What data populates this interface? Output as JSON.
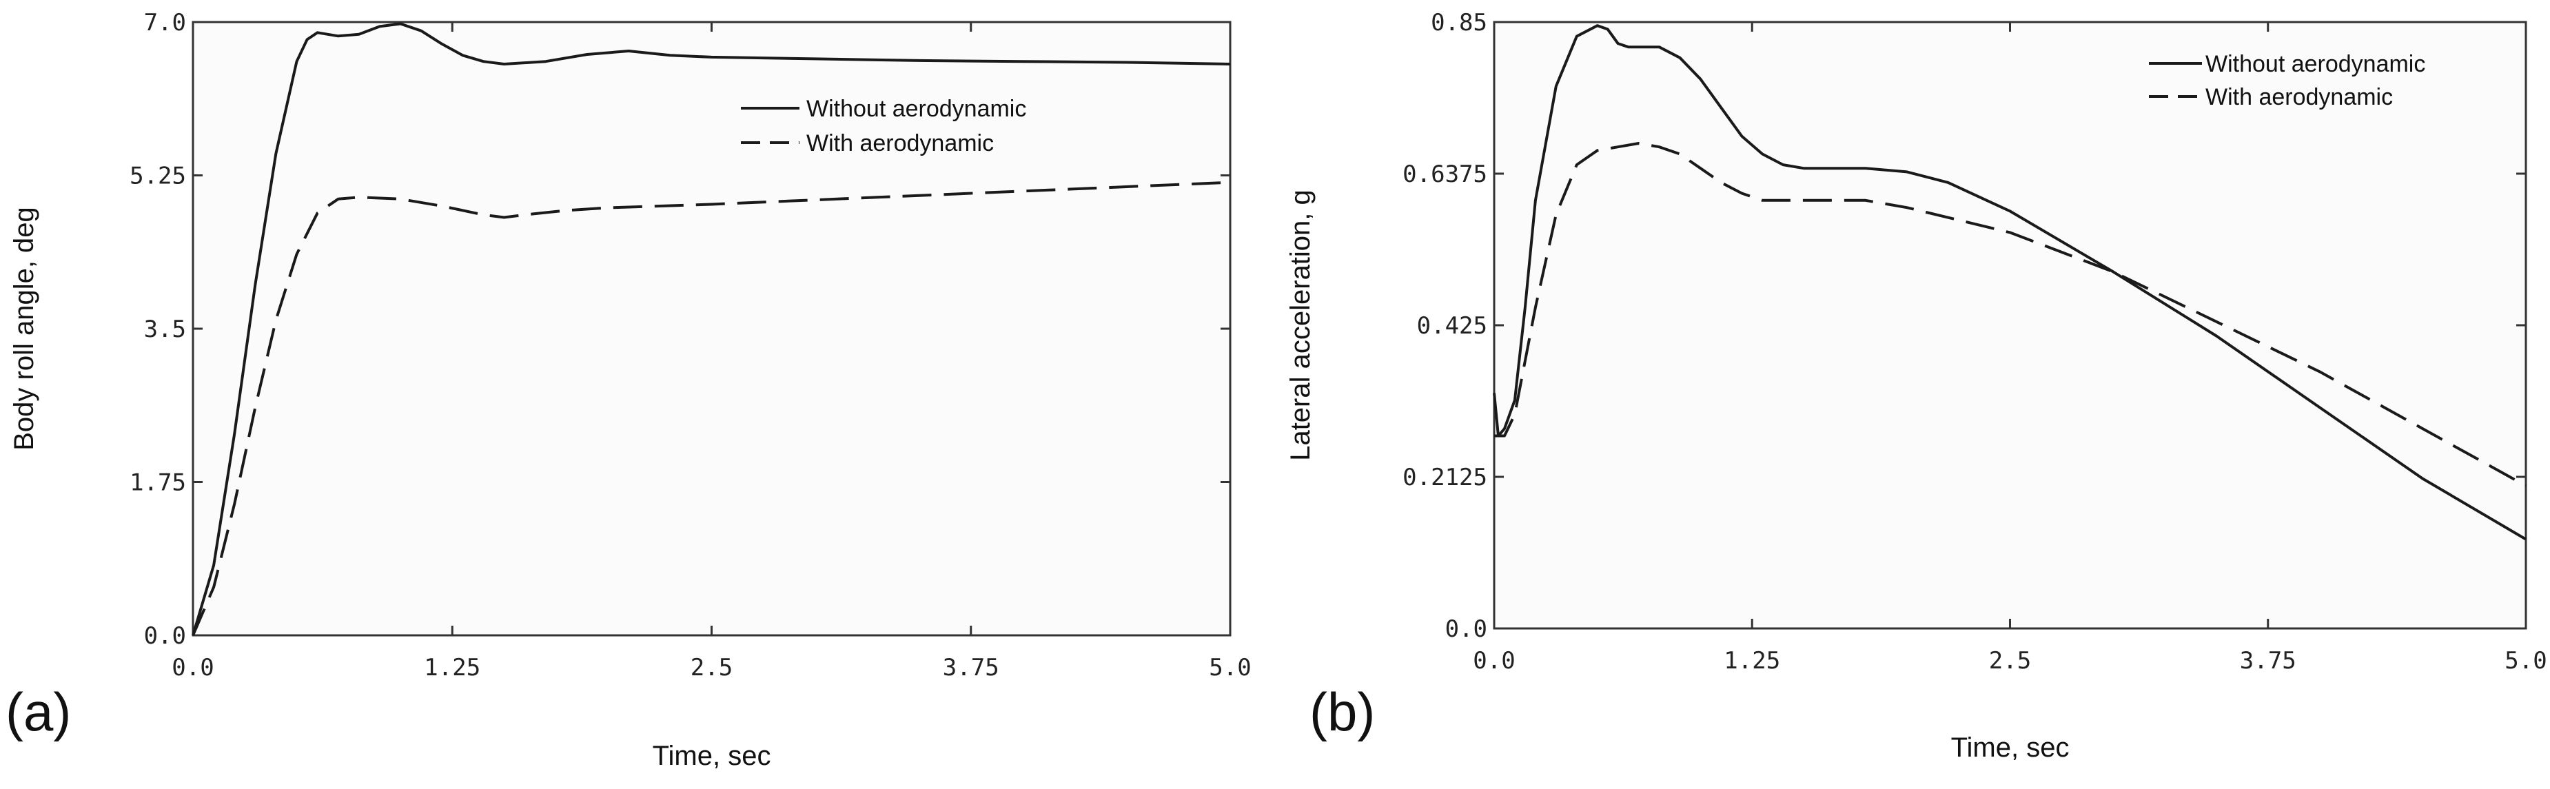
{
  "chart_data": [
    {
      "type": "line",
      "panel_label": "(a)",
      "xlabel": "Time, sec",
      "ylabel": "Body roll angle, deg",
      "xlim": [
        0.0,
        5.0
      ],
      "ylim": [
        0.0,
        7.0
      ],
      "xticks": [
        "0.0",
        "1.25",
        "2.5",
        "3.75",
        "5.0"
      ],
      "yticks": [
        "0.0",
        "1.75",
        "3.5",
        "5.25",
        "7.0"
      ],
      "grid": false,
      "legend": "top-right",
      "series": [
        {
          "name": "Without aerodynamic",
          "style": "solid",
          "x": [
            0,
            0.1,
            0.2,
            0.3,
            0.4,
            0.5,
            0.55,
            0.6,
            0.65,
            0.7,
            0.8,
            0.9,
            1.0,
            1.1,
            1.2,
            1.3,
            1.4,
            1.5,
            1.7,
            1.9,
            2.1,
            2.3,
            2.5,
            3.0,
            3.5,
            4.0,
            4.5,
            5.0
          ],
          "y": [
            0,
            0.8,
            2.3,
            4.0,
            5.5,
            6.55,
            6.8,
            6.88,
            6.86,
            6.84,
            6.86,
            6.95,
            6.98,
            6.9,
            6.75,
            6.62,
            6.55,
            6.52,
            6.55,
            6.63,
            6.67,
            6.62,
            6.6,
            6.58,
            6.56,
            6.55,
            6.54,
            6.52
          ]
        },
        {
          "name": "With aerodynamic",
          "style": "dashed",
          "x": [
            0,
            0.1,
            0.2,
            0.3,
            0.4,
            0.5,
            0.6,
            0.7,
            0.8,
            1.0,
            1.2,
            1.4,
            1.5,
            1.6,
            1.8,
            2.0,
            2.5,
            3.0,
            3.5,
            4.0,
            4.5,
            5.0
          ],
          "y": [
            0,
            0.55,
            1.5,
            2.6,
            3.6,
            4.35,
            4.82,
            4.98,
            5.0,
            4.98,
            4.9,
            4.8,
            4.77,
            4.8,
            4.85,
            4.88,
            4.92,
            4.97,
            5.02,
            5.07,
            5.12,
            5.17
          ]
        }
      ]
    },
    {
      "type": "line",
      "panel_label": "(b)",
      "xlabel": "Time, sec",
      "ylabel": "Lateral acceleration, g",
      "xlim": [
        0.0,
        5.0
      ],
      "ylim": [
        0.0,
        0.85
      ],
      "xticks": [
        "0.0",
        "1.25",
        "2.5",
        "3.75",
        "5.0"
      ],
      "yticks": [
        "0.0",
        "0.2125",
        "0.425",
        "0.6375",
        "0.85"
      ],
      "grid": false,
      "legend": "top-right",
      "series": [
        {
          "name": "Without aerodynamic",
          "style": "solid",
          "x": [
            0,
            0.02,
            0.05,
            0.1,
            0.15,
            0.2,
            0.3,
            0.4,
            0.5,
            0.55,
            0.6,
            0.65,
            0.7,
            0.8,
            0.9,
            1.0,
            1.1,
            1.2,
            1.3,
            1.4,
            1.5,
            1.6,
            1.8,
            2.0,
            2.2,
            2.5,
            3.0,
            3.5,
            4.0,
            4.5,
            5.0
          ],
          "y": [
            0.33,
            0.27,
            0.28,
            0.32,
            0.45,
            0.6,
            0.76,
            0.83,
            0.845,
            0.84,
            0.82,
            0.815,
            0.815,
            0.815,
            0.8,
            0.77,
            0.73,
            0.69,
            0.665,
            0.65,
            0.645,
            0.645,
            0.645,
            0.64,
            0.625,
            0.585,
            0.5,
            0.41,
            0.31,
            0.21,
            0.125
          ]
        },
        {
          "name": "With aerodynamic",
          "style": "dashed",
          "x": [
            0,
            0.05,
            0.1,
            0.2,
            0.3,
            0.4,
            0.5,
            0.6,
            0.7,
            0.8,
            0.9,
            1.0,
            1.1,
            1.2,
            1.3,
            1.5,
            1.8,
            2.0,
            2.5,
            3.0,
            3.5,
            4.0,
            4.5,
            5.0
          ],
          "y": [
            0.27,
            0.27,
            0.3,
            0.45,
            0.58,
            0.65,
            0.67,
            0.675,
            0.68,
            0.675,
            0.665,
            0.645,
            0.625,
            0.61,
            0.6,
            0.6,
            0.6,
            0.59,
            0.555,
            0.5,
            0.43,
            0.36,
            0.28,
            0.2
          ]
        }
      ]
    }
  ]
}
